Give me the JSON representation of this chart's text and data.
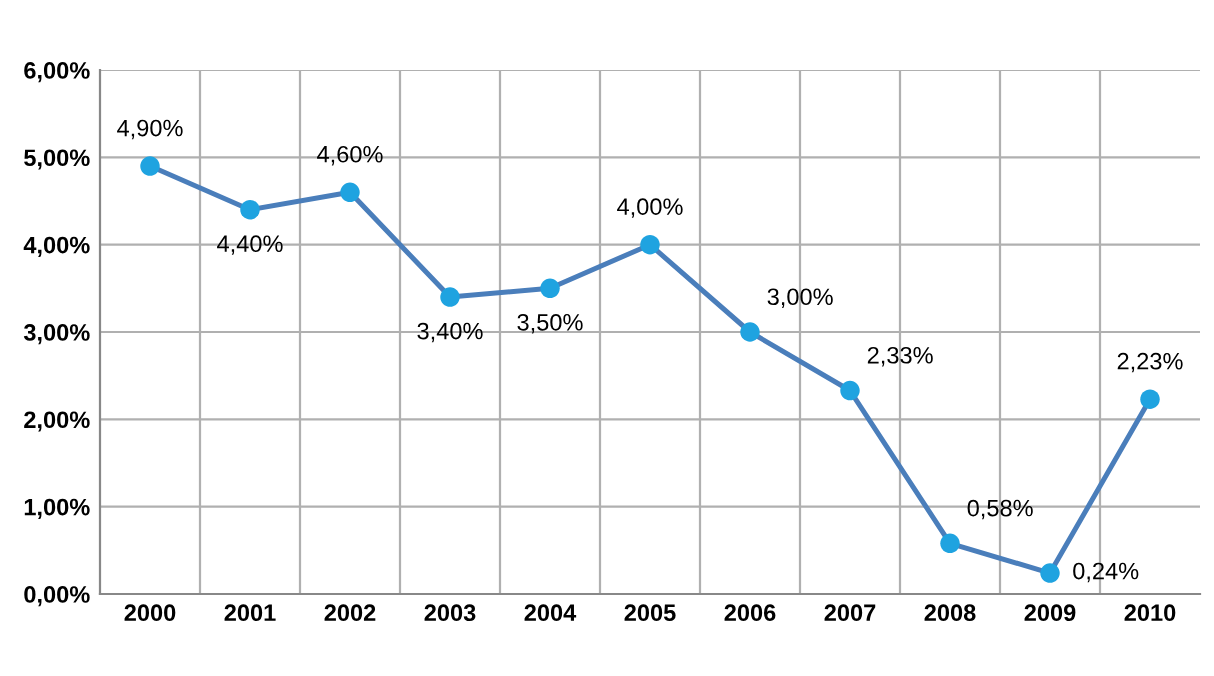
{
  "chart_data": {
    "type": "line",
    "categories": [
      "2000",
      "2001",
      "2002",
      "2003",
      "2004",
      "2005",
      "2006",
      "2007",
      "2008",
      "2009",
      "2010"
    ],
    "series": [
      {
        "color": "#4a7ebb",
        "colors": [
          "#1fa3e0",
          "#1fa3e0",
          "#1fa3e0",
          "#1fa3e0",
          "#1fa3e0",
          "#1fa3e0",
          "#1fa3e0",
          "#1fa3e0",
          "#1fa3e0",
          "#1fa3e0",
          "#1fa3e0"
        ],
        "values": [
          4.9,
          4.4,
          4.6,
          3.4,
          3.5,
          4.0,
          3.0,
          2.33,
          0.58,
          0.24,
          2.23
        ],
        "value_labels": [
          "4,90%",
          "4,40%",
          "4,60%",
          "3,40%",
          "3,50%",
          "4,00%",
          "3,00%",
          "2,33%",
          "0,58%",
          "0,24%",
          "2,23%"
        ]
      }
    ],
    "ylim": [
      0,
      6
    ],
    "yticks": [
      {
        "value": 0,
        "label": "0,00%"
      },
      {
        "value": 1,
        "label": "1,00%"
      },
      {
        "value": 2,
        "label": "2,00%"
      },
      {
        "value": 3,
        "label": "3,00%"
      },
      {
        "value": 4,
        "label": "4,00%"
      },
      {
        "value": 5,
        "label": "5,00%"
      },
      {
        "value": 6,
        "label": "6,00%"
      }
    ],
    "grid": true,
    "marker": "circle",
    "line_style": "solid",
    "legend": false
  }
}
